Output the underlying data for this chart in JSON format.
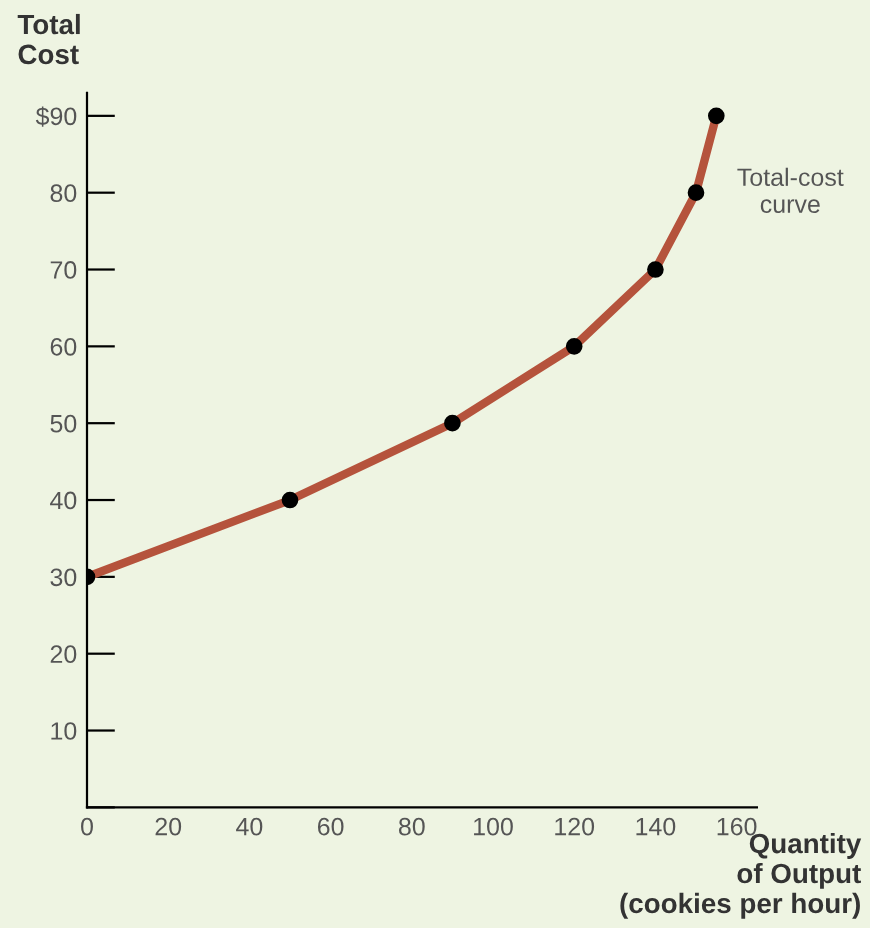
{
  "chart_data": {
    "type": "line",
    "ylabel": "Total\nCost",
    "xlabel": "Quantity\nof Output\n(cookies per hour)",
    "x": [
      0,
      50,
      90,
      120,
      140,
      150,
      155
    ],
    "series": [
      {
        "color": "#b5533c",
        "values": [
          30,
          40,
          50,
          60,
          70,
          80,
          90
        ]
      }
    ],
    "marker": "circle",
    "line_style": "solid",
    "grid": false,
    "legend": false,
    "xlim": [
      0,
      165
    ],
    "ylim": [
      0,
      93
    ],
    "xticks": [
      0,
      20,
      40,
      60,
      80,
      100,
      120,
      140,
      160
    ],
    "yticks": [
      {
        "value": 0,
        "label": null
      },
      10,
      20,
      30,
      40,
      50,
      60,
      70,
      80,
      {
        "value": 90,
        "label": "$90"
      }
    ],
    "annotations": [
      "Total-cost\ncurve"
    ]
  }
}
